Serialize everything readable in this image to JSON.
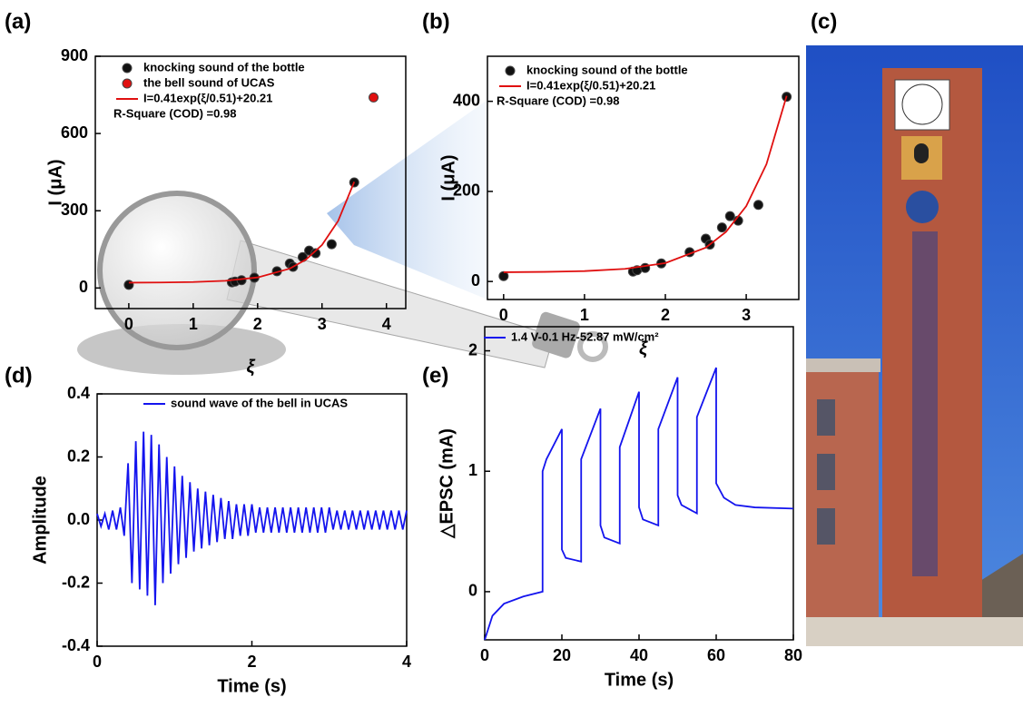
{
  "chart_data": [
    {
      "type": "scatter",
      "panel_label": "(a)",
      "x_label": "ξ",
      "y_label": "I (μA)",
      "xlim": [
        -0.52,
        4.3
      ],
      "ylim": [
        -80,
        900
      ],
      "xticks": [
        0,
        1,
        2,
        3,
        4
      ],
      "yticks": [
        0,
        300,
        600,
        900
      ],
      "annotation": "R-Square (COD) =0.98",
      "series": [
        {
          "name": "knocking sound of the bottle",
          "color": "#111111",
          "style": "markers",
          "x": [
            0,
            1.6,
            1.65,
            1.75,
            1.95,
            2.3,
            2.5,
            2.55,
            2.7,
            2.8,
            2.9,
            3.15,
            3.5
          ],
          "values": [
            12,
            22,
            25,
            30,
            40,
            65,
            95,
            82,
            120,
            145,
            135,
            170,
            410
          ]
        },
        {
          "name": "the bell sound of UCAS",
          "color": "#e01010",
          "style": "markers",
          "x": [
            3.8
          ],
          "values": [
            740
          ]
        },
        {
          "name": "I=0.41exp(ξ/0.51)+20.21",
          "color": "#e01010",
          "style": "line",
          "x": [
            0,
            0.5,
            1,
            1.5,
            2,
            2.5,
            2.75,
            3,
            3.25,
            3.5
          ],
          "values": [
            20.6,
            21.3,
            23.1,
            28.0,
            40.9,
            75.3,
            110.2,
            167.2,
            260.3,
            412.2
          ]
        }
      ]
    },
    {
      "type": "scatter",
      "panel_label": "(b)",
      "x_label": "ξ",
      "y_label": "I (μA)",
      "xlim": [
        -0.2,
        3.65
      ],
      "ylim": [
        -40,
        500
      ],
      "xticks": [
        0,
        1,
        2,
        3
      ],
      "yticks": [
        0,
        200,
        400
      ],
      "annotation": "R-Square (COD) =0.98",
      "series": [
        {
          "name": "knocking sound of the bottle",
          "color": "#111111",
          "style": "markers",
          "x": [
            0,
            1.6,
            1.65,
            1.75,
            1.95,
            2.3,
            2.5,
            2.55,
            2.7,
            2.8,
            2.9,
            3.15,
            3.5
          ],
          "values": [
            12,
            22,
            25,
            30,
            40,
            65,
            95,
            82,
            120,
            145,
            135,
            170,
            410
          ]
        },
        {
          "name": "I=0.41exp(ξ/0.51)+20.21",
          "color": "#e01010",
          "style": "line",
          "x": [
            0,
            0.5,
            1,
            1.5,
            2,
            2.5,
            2.75,
            3,
            3.25,
            3.5
          ],
          "values": [
            20.6,
            21.3,
            23.1,
            28.0,
            40.9,
            75.3,
            110.2,
            167.2,
            260.3,
            412.2
          ]
        }
      ]
    },
    {
      "type": "line",
      "panel_label": "(d)",
      "x_label": "Time (s)",
      "y_label": "Amplitude",
      "xlim": [
        0,
        4
      ],
      "ylim": [
        -0.4,
        0.4
      ],
      "xticks": [
        0,
        2,
        4
      ],
      "yticks": [
        -0.4,
        -0.2,
        {
          "value": 0,
          "label": "0.0"
        },
        0.2,
        0.4
      ],
      "series": [
        {
          "name": "sound wave of the bell in UCAS",
          "color": "#1414ee",
          "style": "line",
          "x": [
            0,
            0.05,
            0.1,
            0.15,
            0.2,
            0.25,
            0.3,
            0.35,
            0.4,
            0.45,
            0.5,
            0.55,
            0.6,
            0.65,
            0.7,
            0.75,
            0.8,
            0.85,
            0.9,
            0.95,
            1,
            1.05,
            1.1,
            1.15,
            1.2,
            1.25,
            1.3,
            1.35,
            1.4,
            1.45,
            1.5,
            1.55,
            1.6,
            1.65,
            1.7,
            1.75,
            1.8,
            1.85,
            1.9,
            1.95,
            2,
            2.05,
            2.1,
            2.15,
            2.2,
            2.25,
            2.3,
            2.35,
            2.4,
            2.45,
            2.5,
            2.55,
            2.6,
            2.65,
            2.7,
            2.75,
            2.8,
            2.85,
            2.9,
            2.95,
            3,
            3.05,
            3.1,
            3.15,
            3.2,
            3.25,
            3.3,
            3.35,
            3.4,
            3.45,
            3.5,
            3.55,
            3.6,
            3.65,
            3.7,
            3.75,
            3.8,
            3.85,
            3.9,
            3.95,
            4
          ],
          "values": [
            0.02,
            -0.02,
            0.02,
            -0.03,
            0.03,
            -0.03,
            0.04,
            -0.05,
            0.18,
            -0.2,
            0.25,
            -0.22,
            0.28,
            -0.24,
            0.27,
            -0.27,
            0.24,
            -0.2,
            0.2,
            -0.17,
            0.17,
            -0.14,
            0.14,
            -0.12,
            0.12,
            -0.1,
            0.1,
            -0.09,
            0.09,
            -0.08,
            0.08,
            -0.07,
            0.07,
            -0.06,
            0.06,
            -0.06,
            0.05,
            -0.05,
            0.05,
            -0.05,
            0.05,
            -0.04,
            0.04,
            -0.04,
            0.04,
            -0.04,
            0.04,
            -0.04,
            0.04,
            -0.04,
            0.04,
            -0.04,
            0.04,
            -0.04,
            0.04,
            -0.04,
            0.04,
            -0.04,
            0.04,
            -0.04,
            0.04,
            -0.03,
            0.03,
            -0.03,
            0.03,
            -0.03,
            0.03,
            -0.03,
            0.03,
            -0.03,
            0.03,
            -0.03,
            0.03,
            -0.03,
            0.03,
            -0.03,
            0.03,
            -0.03,
            0.03,
            -0.03,
            0.03
          ]
        }
      ]
    },
    {
      "type": "line",
      "panel_label": "(e)",
      "x_label": "Time (s)",
      "y_label": "△EPSC (mA)",
      "xlim": [
        0,
        80
      ],
      "ylim": [
        -0.4,
        2.2
      ],
      "xticks": [
        0,
        20,
        40,
        60,
        80
      ],
      "yticks": [
        0,
        1,
        2
      ],
      "series": [
        {
          "name": "1.4 V-0.1 Hz-52.87 mW/cm²",
          "color": "#1414ee",
          "style": "line",
          "x": [
            0,
            2,
            5,
            10,
            15,
            15,
            16,
            20,
            20,
            21,
            25,
            25,
            30,
            30,
            31,
            35,
            35,
            40,
            40,
            41,
            45,
            45,
            50,
            50,
            51,
            55,
            55,
            60,
            60,
            62,
            65,
            70,
            80
          ],
          "values": [
            -0.4,
            -0.2,
            -0.1,
            -0.04,
            0,
            1.0,
            1.1,
            1.35,
            0.35,
            0.28,
            0.25,
            1.1,
            1.52,
            0.55,
            0.45,
            0.4,
            1.2,
            1.66,
            0.7,
            0.6,
            0.55,
            1.35,
            1.78,
            0.8,
            0.72,
            0.65,
            1.45,
            1.86,
            0.9,
            0.78,
            0.72,
            0.7,
            0.69
          ]
        }
      ]
    }
  ],
  "photo": {
    "panel_label": "(c)"
  }
}
